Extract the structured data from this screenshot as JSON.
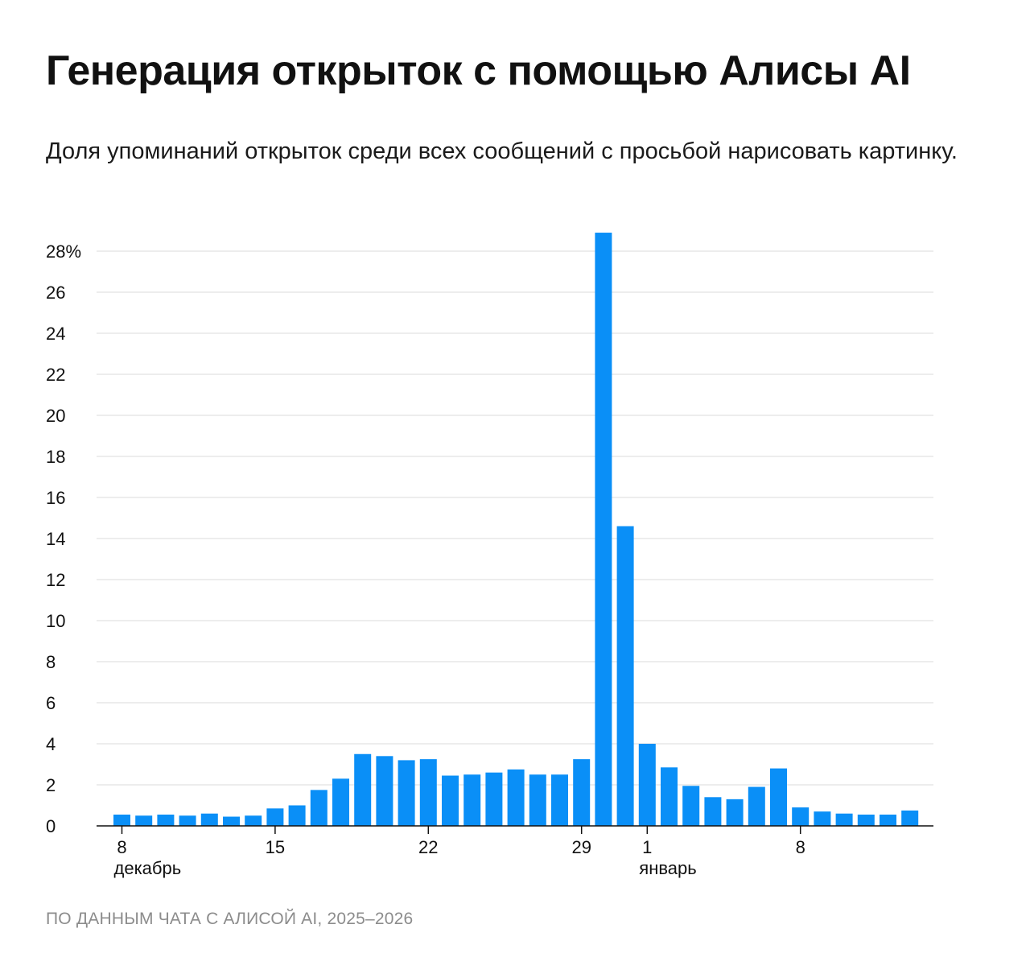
{
  "header": {
    "title": "Генерация открыток с помощью Алисы AI",
    "subtitle": "Доля упоминаний открыток среди всех сообщений с просьбой нарисовать картинку."
  },
  "footer": {
    "source": "ПО ДАННЫМ ЧАТА С АЛИСОЙ AI, 2025–2026"
  },
  "colors": {
    "bar": "#0a8ff7",
    "grid": "#e2e2e2",
    "axis": "#111111"
  },
  "chart_data": {
    "type": "bar",
    "title": "Генерация открыток с помощью Алисы AI",
    "ylabel": "%",
    "ylim": [
      0,
      28
    ],
    "yticks": [
      0,
      2,
      4,
      6,
      8,
      10,
      12,
      14,
      16,
      18,
      20,
      22,
      24,
      26,
      28
    ],
    "ytick_labels": [
      "0",
      "2",
      "4",
      "6",
      "8",
      "10",
      "12",
      "14",
      "16",
      "18",
      "20",
      "22",
      "24",
      "26",
      "28%"
    ],
    "categories": [
      "8 дек",
      "9 дек",
      "10 дек",
      "11 дек",
      "12 дек",
      "13 дек",
      "14 дек",
      "15 дек",
      "16 дек",
      "17 дек",
      "18 дек",
      "19 дек",
      "20 дек",
      "21 дек",
      "22 дек",
      "23 дек",
      "24 дек",
      "25 дек",
      "26 дек",
      "27 дек",
      "28 дек",
      "29 дек",
      "30 дек",
      "31 дек",
      "1 янв",
      "2 янв",
      "3 янв",
      "4 янв",
      "5 янв",
      "6 янв",
      "7 янв",
      "8 янв",
      "9 янв",
      "10 янв",
      "11 янв",
      "12 янв",
      "13 янв"
    ],
    "values": [
      0.55,
      0.5,
      0.55,
      0.5,
      0.6,
      0.45,
      0.5,
      0.85,
      1.0,
      1.75,
      2.3,
      3.5,
      3.4,
      3.2,
      3.25,
      2.45,
      2.5,
      2.6,
      2.75,
      2.5,
      2.5,
      3.25,
      28.9,
      14.6,
      4.0,
      2.85,
      1.95,
      1.4,
      1.3,
      1.9,
      2.8,
      0.9,
      0.7,
      0.6,
      0.55,
      0.55,
      0.75
    ],
    "xtick_labels": [
      {
        "index": 0,
        "label": "8"
      },
      {
        "index": 7,
        "label": "15"
      },
      {
        "index": 14,
        "label": "22"
      },
      {
        "index": 21,
        "label": "29"
      },
      {
        "index": 24,
        "label": "1"
      },
      {
        "index": 31,
        "label": "8"
      }
    ],
    "month_labels": [
      {
        "index": 0,
        "label": "декабрь"
      },
      {
        "index": 24,
        "label": "январь"
      }
    ],
    "grid": true
  }
}
